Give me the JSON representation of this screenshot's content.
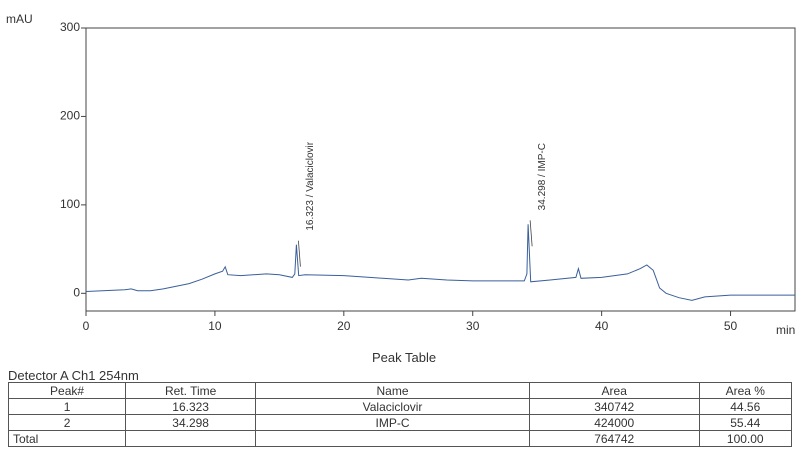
{
  "chart_data": {
    "type": "line",
    "y_label": "mAU",
    "x_label": "min",
    "xlim": [
      0,
      55
    ],
    "xticks": [
      0,
      10,
      20,
      30,
      40,
      50
    ],
    "ylim": [
      -20,
      300
    ],
    "yticks": [
      0,
      100,
      200,
      300
    ],
    "color": "#3a5f9a",
    "x": [
      0,
      3,
      3.5,
      4,
      5,
      6,
      7,
      8,
      9,
      10,
      10.6,
      10.8,
      11,
      12,
      14,
      15,
      16,
      16.2,
      16.323,
      16.5,
      17,
      20,
      22,
      25,
      26,
      28,
      30,
      32,
      34,
      34.2,
      34.298,
      34.5,
      36,
      38,
      38.2,
      38.4,
      40,
      42,
      43,
      43.5,
      44,
      44.5,
      45,
      46,
      47,
      48,
      50,
      52,
      55
    ],
    "values": [
      2,
      4,
      5,
      3,
      3,
      5,
      8,
      11,
      16,
      22,
      25,
      30,
      21,
      20,
      22,
      21,
      18,
      22,
      55,
      20,
      21,
      20,
      18,
      15,
      17,
      15,
      14,
      14,
      14,
      22,
      78,
      13,
      15,
      18,
      28,
      17,
      18,
      22,
      28,
      32,
      26,
      6,
      0,
      -5,
      -8,
      -4,
      -2,
      -2,
      -2
    ],
    "annotations": [
      {
        "text": "16.323 / Valaciclovir",
        "x": 16.323,
        "y": 55
      },
      {
        "text": "34.298 / IMP-C",
        "x": 34.298,
        "y": 78
      }
    ]
  },
  "table": {
    "title": "Peak Table",
    "detector": "Detector A Ch1 254nm",
    "header": [
      "Peak#",
      "Ret. Time",
      "Name",
      "Area",
      "Area %"
    ],
    "rows": [
      [
        "1",
        "16.323",
        "Valaciclovir",
        "340742",
        "44.56"
      ],
      [
        "2",
        "34.298",
        "IMP-C",
        "424000",
        "55.44"
      ],
      [
        "Total",
        "",
        "",
        "764742",
        "100.00"
      ]
    ]
  }
}
